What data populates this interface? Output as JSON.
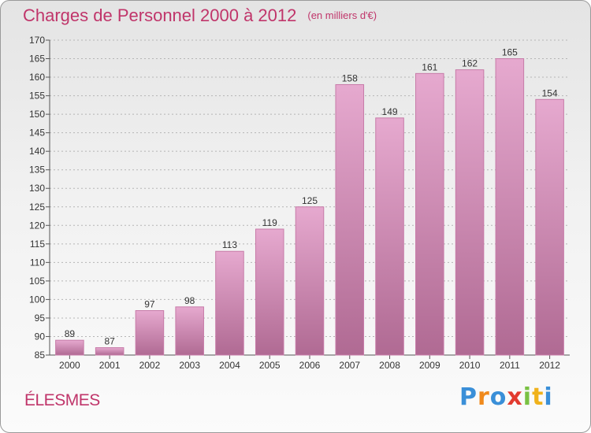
{
  "header": {
    "title": "Charges de Personnel 2000 à 2012",
    "unit": "(en milliers d'€)"
  },
  "commune": "ÉLESMES",
  "logo": {
    "text": "Proxiti"
  },
  "colors": {
    "title": "#c0356a",
    "bar_top": "#e6a9cf",
    "bar_bottom": "#b06a93",
    "bar_edge": "#c77ba8"
  },
  "chart_data": {
    "type": "bar",
    "title": "Charges de Personnel 2000 à 2012",
    "subtitle": "(en milliers d'€)",
    "categories": [
      "2000",
      "2001",
      "2002",
      "2003",
      "2004",
      "2005",
      "2006",
      "2007",
      "2008",
      "2009",
      "2010",
      "2011",
      "2012"
    ],
    "values": [
      89,
      87,
      97,
      98,
      113,
      119,
      125,
      158,
      149,
      161,
      162,
      165,
      154
    ],
    "ylim": [
      85,
      170
    ],
    "yticks": [
      85,
      90,
      95,
      100,
      105,
      110,
      115,
      120,
      125,
      130,
      135,
      140,
      145,
      150,
      155,
      160,
      165,
      170
    ],
    "grid": true,
    "legend": false
  }
}
